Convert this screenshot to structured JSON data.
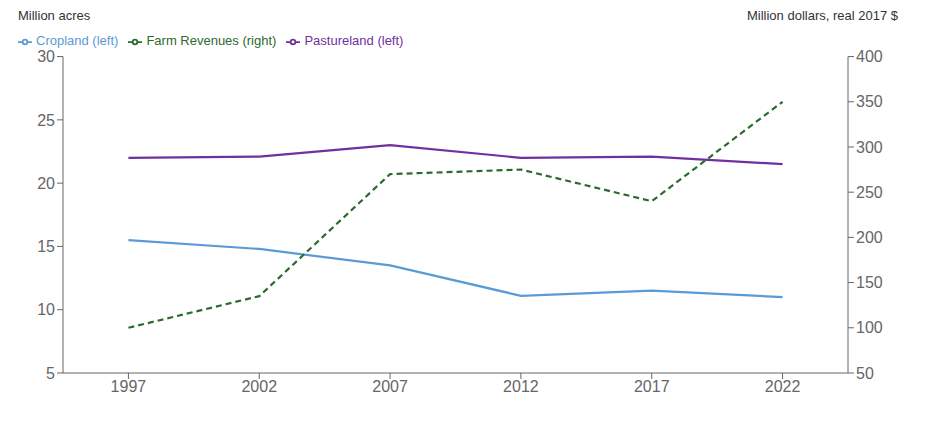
{
  "chart_data": {
    "type": "line",
    "x": [
      1997,
      2002,
      2007,
      2012,
      2017,
      2022
    ],
    "xlim": [
      1994.5,
      2024.5
    ],
    "xticks": [
      1997,
      2002,
      2007,
      2012,
      2017,
      2022
    ],
    "ylabel": "Million acres",
    "y2label": "Million dollars, real 2017 $",
    "ylim": [
      5,
      30
    ],
    "yticks": [
      5,
      10,
      15,
      20,
      25,
      30
    ],
    "y2lim": [
      50,
      400
    ],
    "y2ticks": [
      50,
      100,
      150,
      200,
      250,
      300,
      350,
      400
    ],
    "grid": false,
    "legend": "upper left",
    "series": [
      {
        "name": "Cropland (left)",
        "color": "#5b9bd5",
        "values": [
          15.5,
          14.8,
          13.5,
          11.1,
          11.5,
          11.0
        ],
        "line_style": "solid"
      },
      {
        "name": "Pastureland (left)",
        "color": "#7030a0",
        "values": [
          22.0,
          22.1,
          23.0,
          22.0,
          22.1,
          21.5
        ],
        "line_style": "solid"
      },
      {
        "name": "Farm Revenues (right)",
        "color": "#2d6a2d",
        "values": [
          100,
          135,
          270,
          275,
          240,
          350
        ],
        "axis": "y2",
        "line_style": "dashed"
      }
    ]
  }
}
